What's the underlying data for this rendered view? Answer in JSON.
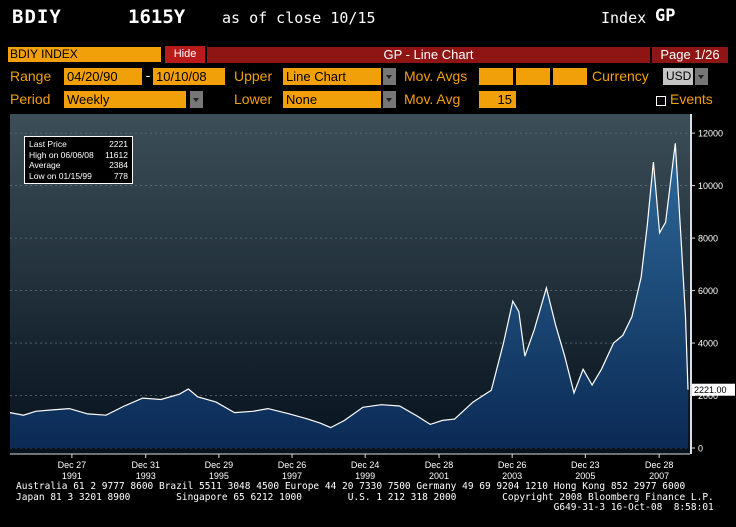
{
  "header": {
    "ticker": "BDIY",
    "price": "1615Y",
    "as_of": "as of close 10/15",
    "index_label": "Index",
    "index_value": "GP"
  },
  "title_bar": {
    "security": "BDIY INDEX",
    "hide_label": "Hide",
    "title": "GP - Line Chart",
    "page": "Page 1/26"
  },
  "controls": {
    "range_label": "Range",
    "range_start": "04/20/90",
    "range_dash": "-",
    "range_end": "10/10/08",
    "upper_label": "Upper",
    "upper_value": "Line Chart",
    "mov_avgs_label": "Mov. Avgs",
    "currency_label": "Currency",
    "currency_value": "USD",
    "period_label": "Period",
    "period_value": "Weekly",
    "lower_label": "Lower",
    "lower_value": "None",
    "mov_avg_label": "Mov. Avg",
    "mov_avg_value": "15",
    "events_label": "Events"
  },
  "legend": {
    "rows": [
      {
        "label": "Last Price",
        "value": "2221"
      },
      {
        "label": "High on 06/06/08",
        "value": "11612"
      },
      {
        "label": "Average",
        "value": "2384"
      },
      {
        "label": "Low on 01/15/99",
        "value": "778"
      }
    ]
  },
  "chart_data": {
    "type": "area",
    "title": "",
    "xlabel": "",
    "ylabel": "",
    "ylim": [
      0,
      12500
    ],
    "yticks": [
      0,
      2000,
      4000,
      6000,
      8000,
      10000,
      12000
    ],
    "ytick_labels": [
      "0",
      "2000",
      "4000",
      "6000",
      "8000",
      "10000",
      "12000"
    ],
    "last_value_label": "2221.00",
    "x_ticks": [
      {
        "top": "Dec 27",
        "bottom": "1991",
        "date": "1991-12-27"
      },
      {
        "top": "Dec 31",
        "bottom": "1993",
        "date": "1993-12-31"
      },
      {
        "top": "Dec 29",
        "bottom": "1995",
        "date": "1995-12-29"
      },
      {
        "top": "Dec 26",
        "bottom": "1997",
        "date": "1997-12-26"
      },
      {
        "top": "Dec 24",
        "bottom": "1999",
        "date": "1999-12-24"
      },
      {
        "top": "Dec 28",
        "bottom": "2001",
        "date": "2001-12-28"
      },
      {
        "top": "Dec 26",
        "bottom": "2003",
        "date": "2003-12-26"
      },
      {
        "top": "Dec 23",
        "bottom": "2005",
        "date": "2005-12-23"
      },
      {
        "top": "Dec 28",
        "bottom": "2007",
        "date": "2007-12-28"
      }
    ],
    "x_range": [
      "1990-04-20",
      "2008-10-10"
    ],
    "series": [
      {
        "color": "#ffffff",
        "fill": "#1a4a78",
        "points": [
          [
            "1990-04-20",
            1350
          ],
          [
            "1990-09-01",
            1250
          ],
          [
            "1991-01-01",
            1400
          ],
          [
            "1991-06-01",
            1450
          ],
          [
            "1991-12-01",
            1500
          ],
          [
            "1992-06-01",
            1300
          ],
          [
            "1992-12-01",
            1250
          ],
          [
            "1993-06-01",
            1600
          ],
          [
            "1993-12-01",
            1900
          ],
          [
            "1994-06-01",
            1850
          ],
          [
            "1994-12-01",
            2050
          ],
          [
            "1995-03-01",
            2250
          ],
          [
            "1995-06-01",
            1950
          ],
          [
            "1995-12-01",
            1750
          ],
          [
            "1996-06-01",
            1350
          ],
          [
            "1996-12-01",
            1400
          ],
          [
            "1997-05-01",
            1500
          ],
          [
            "1997-12-01",
            1300
          ],
          [
            "1998-06-01",
            1100
          ],
          [
            "1998-10-01",
            950
          ],
          [
            "1999-01-15",
            778
          ],
          [
            "1999-06-01",
            1050
          ],
          [
            "1999-12-01",
            1550
          ],
          [
            "2000-06-01",
            1650
          ],
          [
            "2000-12-01",
            1600
          ],
          [
            "2001-06-01",
            1200
          ],
          [
            "2001-10-01",
            900
          ],
          [
            "2002-02-01",
            1050
          ],
          [
            "2002-06-01",
            1100
          ],
          [
            "2002-12-01",
            1750
          ],
          [
            "2003-06-01",
            2200
          ],
          [
            "2003-10-01",
            4000
          ],
          [
            "2004-01-01",
            5600
          ],
          [
            "2004-03-01",
            5200
          ],
          [
            "2004-05-01",
            3500
          ],
          [
            "2004-08-01",
            4500
          ],
          [
            "2004-12-01",
            6100
          ],
          [
            "2005-03-01",
            4700
          ],
          [
            "2005-06-01",
            3500
          ],
          [
            "2005-09-01",
            2100
          ],
          [
            "2005-12-01",
            3000
          ],
          [
            "2006-03-01",
            2400
          ],
          [
            "2006-06-01",
            3000
          ],
          [
            "2006-10-01",
            4000
          ],
          [
            "2007-01-01",
            4300
          ],
          [
            "2007-04-01",
            5000
          ],
          [
            "2007-07-01",
            6500
          ],
          [
            "2007-09-01",
            8500
          ],
          [
            "2007-11-01",
            10900
          ],
          [
            "2008-01-01",
            8200
          ],
          [
            "2008-03-01",
            8600
          ],
          [
            "2008-06-06",
            11612
          ],
          [
            "2008-08-01",
            8000
          ],
          [
            "2008-09-15",
            5000
          ],
          [
            "2008-10-10",
            2221
          ]
        ]
      }
    ]
  },
  "footer": {
    "line1": "Australia 61 2 9777 8600 Brazil 5511 3048 4500 Europe 44 20 7330 7500 Germany 49 69 9204 1210 Hong Kong 852 2977 6000",
    "line2": "Japan 81 3 3201 8900        Singapore 65 6212 1000        U.S. 1 212 318 2000        Copyright 2008 Bloomberg Finance L.P.",
    "line3": "                                                                                              G649-31-3 16-Oct-08  8:58:01"
  }
}
